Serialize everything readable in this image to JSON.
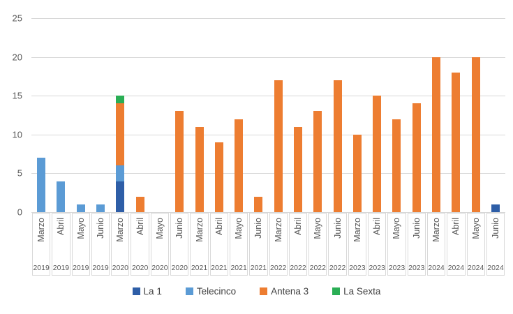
{
  "chart_data": {
    "type": "bar",
    "stacked": true,
    "title": "",
    "xlabel": "",
    "ylabel": "",
    "ylim": [
      0,
      25
    ],
    "yticks": [
      0,
      5,
      10,
      15,
      20,
      25
    ],
    "grid": true,
    "legend_position": "bottom",
    "categories": [
      {
        "month": "Marzo",
        "year": "2019"
      },
      {
        "month": "Abril",
        "year": "2019"
      },
      {
        "month": "Mayo",
        "year": "2019"
      },
      {
        "month": "Junio",
        "year": "2019"
      },
      {
        "month": "Marzo",
        "year": "2020"
      },
      {
        "month": "Abril",
        "year": "2020"
      },
      {
        "month": "Mayo",
        "year": "2020"
      },
      {
        "month": "Junio",
        "year": "2020"
      },
      {
        "month": "Marzo",
        "year": "2021"
      },
      {
        "month": "Abril",
        "year": "2021"
      },
      {
        "month": "Mayo",
        "year": "2021"
      },
      {
        "month": "Junio",
        "year": "2021"
      },
      {
        "month": "Marzo",
        "year": "2022"
      },
      {
        "month": "Abril",
        "year": "2022"
      },
      {
        "month": "Mayo",
        "year": "2022"
      },
      {
        "month": "Junio",
        "year": "2022"
      },
      {
        "month": "Marzo",
        "year": "2023"
      },
      {
        "month": "Abril",
        "year": "2023"
      },
      {
        "month": "Mayo",
        "year": "2023"
      },
      {
        "month": "Junio",
        "year": "2023"
      },
      {
        "month": "Marzo",
        "year": "2024"
      },
      {
        "month": "Abril",
        "year": "2024"
      },
      {
        "month": "Mayo",
        "year": "2024"
      },
      {
        "month": "Junio",
        "year": "2024"
      }
    ],
    "series": [
      {
        "name": "La 1",
        "color": "#2e5ea7",
        "values": [
          0,
          0,
          0,
          0,
          4,
          0,
          0,
          0,
          0,
          0,
          0,
          0,
          0,
          0,
          0,
          0,
          0,
          0,
          0,
          0,
          0,
          0,
          0,
          1
        ]
      },
      {
        "name": "Telecinco",
        "color": "#5b9bd5",
        "values": [
          7,
          4,
          1,
          1,
          2,
          0,
          0,
          0,
          0,
          0,
          0,
          0,
          0,
          0,
          0,
          0,
          0,
          0,
          0,
          0,
          0,
          0,
          0,
          0
        ]
      },
      {
        "name": "Antena 3",
        "color": "#ed7d31",
        "values": [
          0,
          0,
          0,
          0,
          8,
          2,
          0,
          13,
          11,
          9,
          12,
          2,
          17,
          11,
          13,
          17,
          10,
          15,
          12,
          14,
          20,
          18,
          20,
          0
        ]
      },
      {
        "name": "La Sexta",
        "color": "#2aae55",
        "values": [
          0,
          0,
          0,
          0,
          1,
          0,
          0,
          0,
          0,
          0,
          0,
          0,
          0,
          0,
          0,
          0,
          0,
          0,
          0,
          0,
          0,
          0,
          0,
          0
        ]
      }
    ]
  },
  "colors": {
    "gridline": "#d7d7d7",
    "axis_border": "#d9d9d9",
    "tick_text": "#595959",
    "legend_text": "#404040",
    "background": "#ffffff"
  }
}
